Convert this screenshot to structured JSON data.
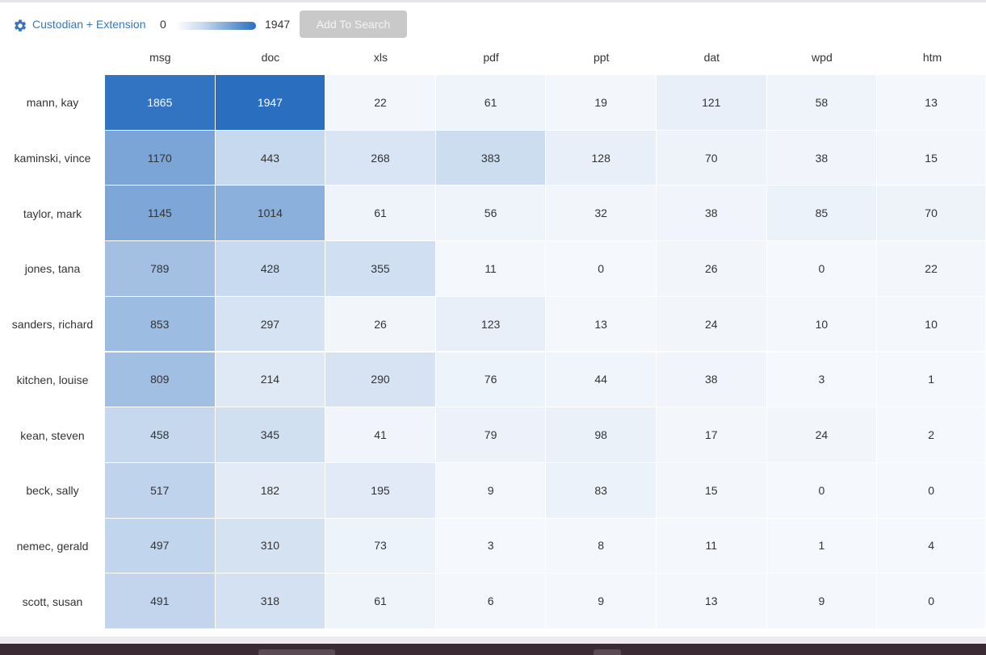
{
  "toolbar": {
    "group_label": "Custodian + Extension",
    "settings_icon": "gear-icon",
    "range_min": "0",
    "range_max": "1947",
    "add_button_label": "Add To Search",
    "accent_color": "#3a76b7"
  },
  "chart_data": {
    "type": "heatmap",
    "columns": [
      "msg",
      "doc",
      "xls",
      "pdf",
      "ppt",
      "dat",
      "wpd",
      "htm"
    ],
    "rows": [
      "mann, kay",
      "kaminski, vince",
      "taylor, mark",
      "jones, tana",
      "sanders, richard",
      "kitchen, louise",
      "kean, steven",
      "beck, sally",
      "nemec, gerald",
      "scott, susan"
    ],
    "values": [
      [
        1865,
        1947,
        22,
        61,
        19,
        121,
        58,
        13
      ],
      [
        1170,
        443,
        268,
        383,
        128,
        70,
        38,
        15
      ],
      [
        1145,
        1014,
        61,
        56,
        32,
        38,
        85,
        70
      ],
      [
        789,
        428,
        355,
        11,
        0,
        26,
        0,
        22
      ],
      [
        853,
        297,
        26,
        123,
        13,
        24,
        10,
        10
      ],
      [
        809,
        214,
        290,
        76,
        44,
        38,
        3,
        1
      ],
      [
        458,
        345,
        41,
        79,
        98,
        17,
        24,
        2
      ],
      [
        517,
        182,
        195,
        9,
        83,
        15,
        0,
        0
      ],
      [
        497,
        310,
        73,
        3,
        8,
        11,
        1,
        4
      ],
      [
        491,
        318,
        61,
        6,
        9,
        13,
        9,
        0
      ]
    ],
    "color_min": 0,
    "color_max": 1947,
    "color_low": "#f5f8fc",
    "color_high": "#2a6ebf"
  }
}
